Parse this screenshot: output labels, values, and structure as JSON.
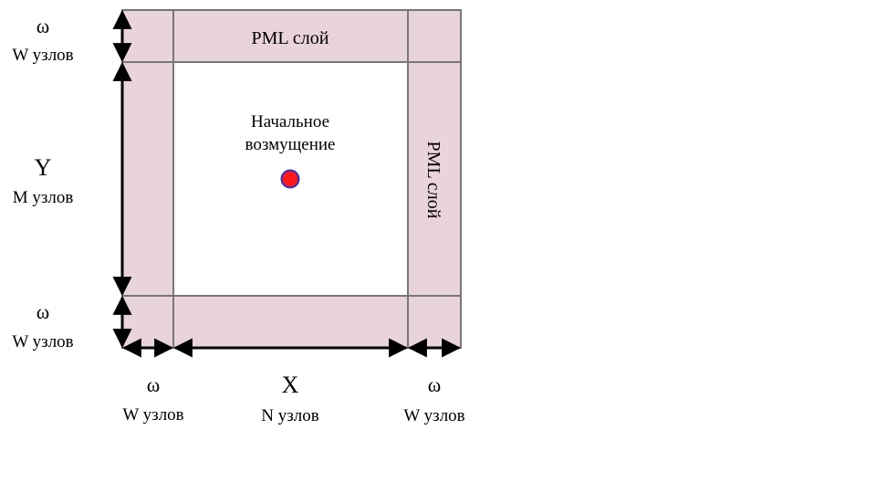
{
  "colors": {
    "pml_fill": "#e9d3dd",
    "grid_line": "#777777",
    "axis_line": "#000000",
    "source_fill": "#ff1a1a",
    "source_stroke": "#3030c8"
  },
  "pml_top_label": "PML слой",
  "pml_right_label": "PML слой",
  "source": {
    "line1": "Начальное",
    "line2": "возмущение",
    "icon": "red-dot"
  },
  "left_labels": {
    "top": {
      "symbol": "ω",
      "nodes": "W узлов"
    },
    "middle": {
      "symbol": "Y",
      "nodes": "M узлов"
    },
    "bottom": {
      "symbol": "ω",
      "nodes": "W узлов"
    }
  },
  "bottom_labels": {
    "left": {
      "symbol": "ω",
      "nodes": "W узлов"
    },
    "middle": {
      "symbol": "X",
      "nodes": "N узлов"
    },
    "right": {
      "symbol": "ω",
      "nodes": "W узлов"
    }
  }
}
